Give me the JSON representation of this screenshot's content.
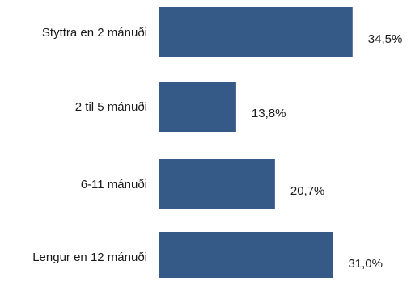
{
  "chart_data": {
    "type": "bar",
    "orientation": "horizontal",
    "categories": [
      "Styttra en 2 mánuði",
      "2 til 5 mánuði",
      "6-11 mánuði",
      "Lengur en 12 mánuði"
    ],
    "values": [
      34.5,
      13.8,
      20.7,
      31.0
    ],
    "value_labels": [
      "34,5%",
      "13,8%",
      "20,7%",
      "31,0%"
    ],
    "title": "",
    "xlabel": "",
    "ylabel": "",
    "xlim": [
      0,
      44
    ],
    "grid": false,
    "legend": "none",
    "bar_color": "#355a87"
  }
}
